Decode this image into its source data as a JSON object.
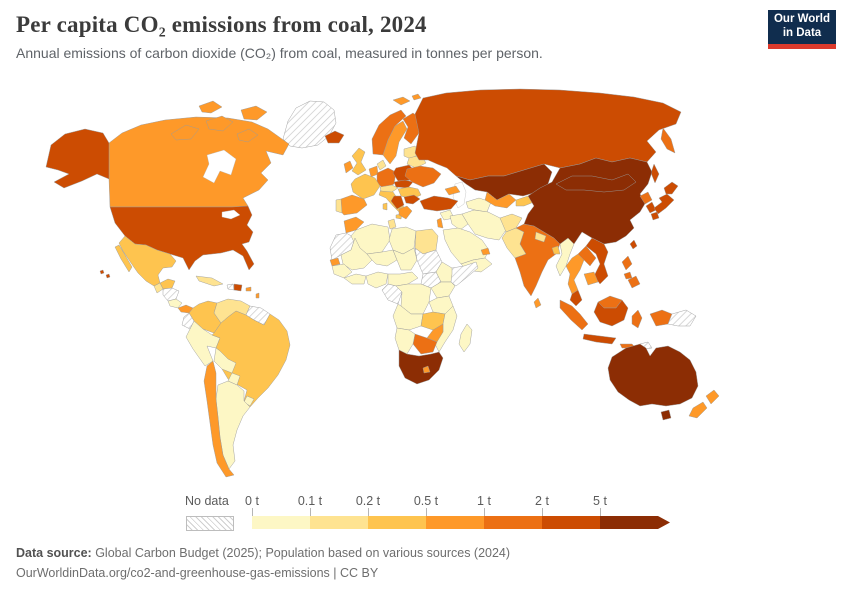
{
  "header": {
    "title": "Per capita CO₂ emissions from coal, 2024",
    "subtitle": "Annual emissions of carbon dioxide (CO₂) from coal, measured in tonnes per person.",
    "logo": {
      "line1": "Our World",
      "line2": "in Data",
      "bg_color": "#102d4e",
      "accent_color": "#dc3a2c"
    }
  },
  "legend": {
    "no_data_label": "No data",
    "stops": [
      "0 t",
      "0.1 t",
      "0.2 t",
      "0.5 t",
      "1 t",
      "2 t",
      "5 t"
    ]
  },
  "footer": {
    "source_label": "Data source:",
    "source_text": " Global Carbon Budget (2025); Population based on various sources (2024)",
    "link_line": "OurWorldinData.org/co2-and-greenhouse-gas-emissions | CC BY"
  },
  "chart_data": {
    "type": "choropleth",
    "title": "Per capita CO₂ emissions from coal, 2024",
    "unit": "tonnes per person",
    "thresholds": [
      0,
      0.1,
      0.2,
      0.5,
      1,
      2,
      5
    ],
    "band_labels": [
      "0–0.1 t",
      "0.1–0.2 t",
      "0.2–0.5 t",
      "0.5–1 t",
      "1–2 t",
      "2–5 t",
      "5 t and over",
      "No data"
    ],
    "band_colors": [
      "#fdf7c5",
      "#fee391",
      "#fec44f",
      "#fe9929",
      "#ec7014",
      "#cc4c02",
      "#8c2d04"
    ],
    "no_data_style": "gray-diagonal-hatch",
    "regions": {
      "greenland": "nodata",
      "svalbard": 3,
      "canada": 3,
      "canada-islands": 3,
      "alaska": 5,
      "usa": 5,
      "hawaii": 5,
      "mexico": 2,
      "guatemala": 1,
      "honduras-nicaragua": "nodata",
      "costa-panama": 0,
      "panama": 3,
      "cuba": 1,
      "haiti": "nodata",
      "dominican": 5,
      "puerto-rico": 3,
      "antilles": 3,
      "colombia": 2,
      "venezuela": 1,
      "guyanas": "nodata",
      "ecuador": "nodata",
      "peru": 0,
      "brazil": 2,
      "bolivia": 0,
      "paraguay": 0,
      "uruguay": 0,
      "argentina": 0,
      "chile": 3,
      "iceland": 5,
      "uk": 2,
      "ireland": 3,
      "norway": 4,
      "sweden": 3,
      "finland": 4,
      "denmark": 1,
      "baltics": 1,
      "benelux": 3,
      "germany": 4,
      "france": 2,
      "spain": 3,
      "portugal": 1,
      "italy": 2,
      "swiss-austria": 1,
      "poland": 5,
      "czech-slovakia": 5,
      "hungary-romania": 2,
      "serbia-balkans": 5,
      "bulgaria": 5,
      "greece": 3,
      "belarus": 1,
      "ukraine": 4,
      "russia": 5,
      "kamchatka": 4,
      "sakhalin": 5,
      "kazakhstan": 6,
      "caucasus": 3,
      "turkmenistan": 0,
      "uzbekistan": 3,
      "kyrgyz-tajik": 2,
      "turkey": 5,
      "syria": 0,
      "israel-lebanon": 3,
      "iraq": 0,
      "saudi": 0,
      "yemen-oman": 0,
      "uae": 3,
      "iran": 0,
      "afghanistan": 1,
      "pakistan": 1,
      "india": 4,
      "nepal": 1,
      "bangladesh": 2,
      "sri-lanka": 3,
      "myanmar": 0,
      "china": 6,
      "mongolia": 6,
      "north-korea": 4,
      "south-korea": 5,
      "japan": 5,
      "taiwan": 5,
      "thailand": 3,
      "laos": 4,
      "vietnam": 5,
      "cambodia": 3,
      "malay-peninsula": 5,
      "sumatra": 4,
      "java": 5,
      "borneo-my": 4,
      "kalimantan": 5,
      "sulawesi": 4,
      "philippines": 4,
      "west-papua": 4,
      "png": "nodata",
      "lesser-sunda": 4,
      "timor": "nodata",
      "australia": 6,
      "tasmania": 6,
      "nz": 3,
      "morocco": 3,
      "wsahara-mauritania": "nodata",
      "algeria": 0,
      "tunisia": 1,
      "libya": 0,
      "egypt": 1,
      "mali": 0,
      "niger": 0,
      "chad": 0,
      "sudan": "nodata",
      "ethiopia": 0,
      "somalia": "nodata",
      "senegal": 3,
      "guinea-region": 0,
      "ivory-ghana": 0,
      "nigeria": 0,
      "cameroon-car": 0,
      "south-sudan": "nodata",
      "congo-gabon": "nodata",
      "drc": 0,
      "uganda-kenya": 0,
      "tanzania": 0,
      "angola": 0,
      "zambia": 2,
      "mozambique": 0,
      "zimbabwe": 3,
      "botswana": 4,
      "namibia": 0,
      "south-africa": 6,
      "lesotho": 3,
      "madagascar": 0
    }
  }
}
